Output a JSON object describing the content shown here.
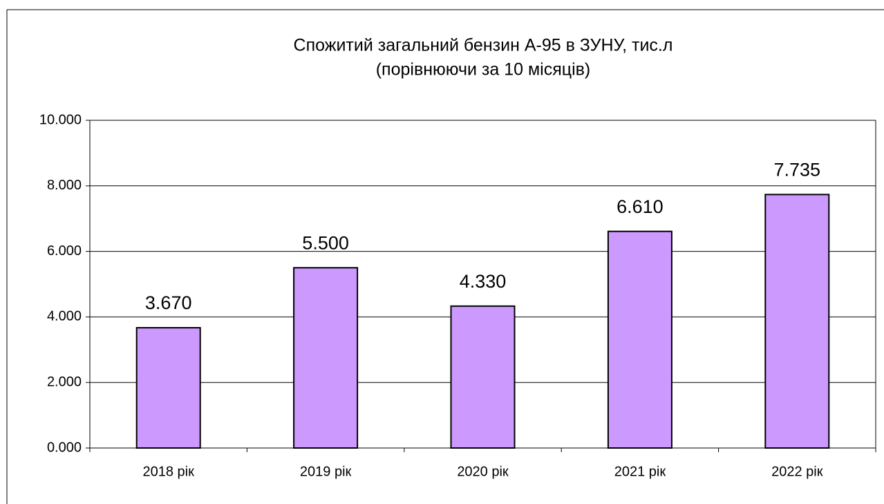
{
  "chart_data": {
    "type": "bar",
    "title": "Спожитий загальний бензин А-95 в ЗУНУ, тис.л",
    "subtitle": "(порівнюючи за 10 місяців)",
    "categories": [
      "2018 рік",
      "2019 рік",
      "2020 рік",
      "2021 рік",
      "2022 рік"
    ],
    "values": [
      3.67,
      5.5,
      4.33,
      6.61,
      7.735
    ],
    "value_labels": [
      "3.670",
      "5.500",
      "4.330",
      "6.610",
      "7.735"
    ],
    "color": "#cc99ff",
    "ylim": [
      0,
      10
    ],
    "yticks": [
      {
        "value": 0,
        "label": "0.000"
      },
      {
        "value": 2,
        "label": "2.000"
      },
      {
        "value": 4,
        "label": "4.000"
      },
      {
        "value": 6,
        "label": "6.000"
      },
      {
        "value": 8,
        "label": "8.000"
      },
      {
        "value": 10,
        "label": "10.000"
      }
    ],
    "grid": true
  }
}
